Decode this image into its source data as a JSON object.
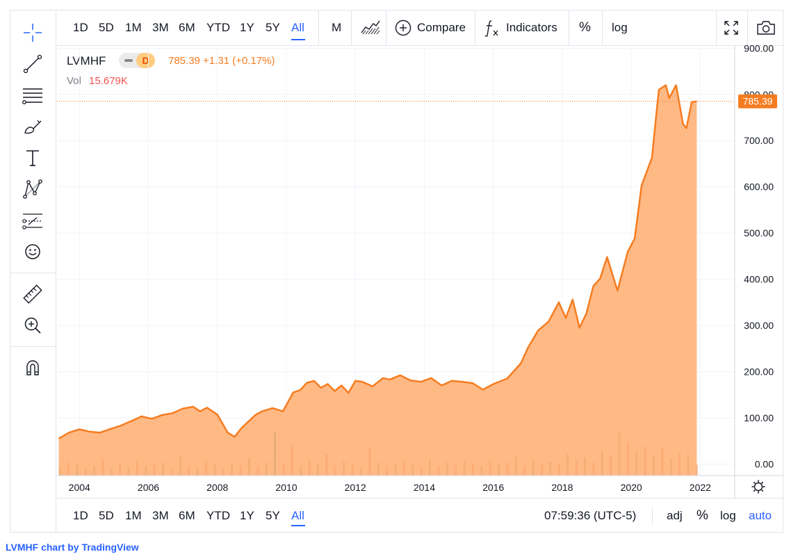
{
  "toolbar": {
    "ranges": [
      "1D",
      "5D",
      "1M",
      "3M",
      "6M",
      "YTD",
      "1Y",
      "5Y",
      "All"
    ],
    "active_range": "All",
    "interval": "M",
    "compare_label": "Compare",
    "indicators_label": "Indicators",
    "percent_label": "%",
    "log_label": "log"
  },
  "bottombar": {
    "ranges": [
      "1D",
      "5D",
      "1M",
      "3M",
      "6M",
      "YTD",
      "1Y",
      "5Y",
      "All"
    ],
    "active_range": "All",
    "time": "07:59:36 (UTC-5)",
    "adj": "adj",
    "percent": "%",
    "log": "log",
    "auto": "auto"
  },
  "legend": {
    "symbol": "LVMHF",
    "interval_badge": "D",
    "quote": "785.39 +1.31 (+0.17%)",
    "vol_label": "Vol",
    "vol_value": "15.679K"
  },
  "price_label": "785.39",
  "credit": {
    "symbol": "LVMHF",
    "text": "chart by",
    "brand": "TradingView"
  },
  "colors": {
    "line": "#f57c1f",
    "area": "#ffa867",
    "accent": "#2962ff",
    "volume_up": "#26a69a",
    "volume_down": "#ef5350"
  },
  "chart_data": {
    "type": "area",
    "x_ticks": [
      "2004",
      "2006",
      "2008",
      "2010",
      "2012",
      "2014",
      "2016",
      "2018",
      "2020",
      "2022"
    ],
    "y_ticks": [
      "0.00",
      "100.00",
      "200.00",
      "300.00",
      "400.00",
      "500.00",
      "600.00",
      "700.00",
      "800.00",
      "900.00"
    ],
    "ylim": [
      -25,
      905
    ],
    "xlim": [
      2003.35,
      2023.0
    ],
    "series": [
      {
        "x": [
          2003.4,
          2003.7,
          2004.0,
          2004.3,
          2004.6,
          2004.9,
          2005.2,
          2005.5,
          2005.8,
          2006.1,
          2006.4,
          2006.7,
          2007.0,
          2007.3,
          2007.5,
          2007.7,
          2008.0,
          2008.3,
          2008.5,
          2008.7,
          2008.9,
          2009.1,
          2009.3,
          2009.6,
          2009.9,
          2010.2,
          2010.4,
          2010.6,
          2010.8,
          2011.0,
          2011.2,
          2011.4,
          2011.6,
          2011.8,
          2012.0,
          2012.2,
          2012.5,
          2012.8,
          2013.0,
          2013.3,
          2013.6,
          2013.9,
          2014.2,
          2014.5,
          2014.8,
          2015.1,
          2015.4,
          2015.7,
          2016.0,
          2016.4,
          2016.8,
          2017.0,
          2017.3,
          2017.6,
          2017.9,
          2018.1,
          2018.3,
          2018.5,
          2018.7,
          2018.9,
          2019.1,
          2019.3,
          2019.6,
          2019.9,
          2020.1,
          2020.3,
          2020.6,
          2020.8,
          2021.0,
          2021.1,
          2021.3,
          2021.5,
          2021.6,
          2021.75,
          2021.9
        ],
        "y": [
          55,
          68,
          75,
          70,
          68,
          76,
          83,
          93,
          103,
          98,
          106,
          110,
          120,
          124,
          114,
          122,
          107,
          68,
          59,
          78,
          92,
          106,
          114,
          121,
          114,
          155,
          160,
          176,
          180,
          165,
          173,
          158,
          170,
          154,
          180,
          178,
          168,
          186,
          183,
          192,
          181,
          178,
          186,
          170,
          180,
          178,
          175,
          161,
          173,
          185,
          218,
          251,
          289,
          308,
          350,
          316,
          356,
          295,
          326,
          385,
          402,
          448,
          375,
          460,
          488,
          603,
          663,
          810,
          820,
          792,
          820,
          736,
          727,
          783,
          785
        ]
      }
    ],
    "volume": [
      8,
      12,
      10,
      6,
      9,
      15,
      7,
      11,
      8,
      14,
      9,
      10,
      12,
      7,
      18,
      9,
      8,
      13,
      10,
      7,
      11,
      9,
      16,
      8,
      12,
      40,
      10,
      28,
      9,
      14,
      11,
      20,
      9,
      13,
      10,
      8,
      25,
      12,
      9,
      11,
      14,
      10,
      8,
      15,
      9,
      12,
      10,
      13,
      11,
      9,
      14,
      10,
      12,
      18,
      9,
      16,
      11,
      13,
      10,
      20,
      14,
      17,
      12,
      23,
      19,
      40,
      30,
      22,
      27,
      18,
      25,
      16,
      21,
      19,
      10
    ],
    "volume_colors": [
      "u",
      "d",
      "u",
      "d",
      "u",
      "d",
      "u",
      "d",
      "u",
      "d",
      "u",
      "d",
      "u",
      "d",
      "u",
      "d",
      "u",
      "d",
      "u",
      "d",
      "u",
      "d",
      "u",
      "d",
      "u",
      "t",
      "d",
      "p",
      "u",
      "d",
      "u",
      "p",
      "d",
      "u",
      "d",
      "u",
      "d",
      "u",
      "d",
      "u",
      "d",
      "u",
      "d",
      "u",
      "d",
      "u",
      "d",
      "u",
      "d",
      "u",
      "d",
      "u",
      "d",
      "u",
      "d",
      "u",
      "d",
      "u",
      "d",
      "u",
      "d",
      "u",
      "d",
      "u",
      "d",
      "u",
      "d",
      "u",
      "d",
      "u",
      "d",
      "u",
      "d",
      "u",
      "d"
    ]
  }
}
